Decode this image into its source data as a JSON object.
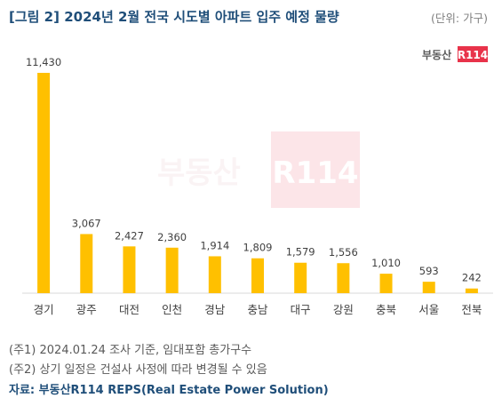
{
  "header": {
    "title": "[그림 2] 2024년 2월 전국 시도별 아파트 입주 예정 물량",
    "unit": "(단위: 가구)"
  },
  "branding": {
    "logo_text": "부동산R114",
    "watermark_text": "부동산R114"
  },
  "chart_data": {
    "type": "bar",
    "categories": [
      "경기",
      "광주",
      "대전",
      "인천",
      "경남",
      "충남",
      "대구",
      "강원",
      "충북",
      "서울",
      "전북"
    ],
    "values": [
      11430,
      3067,
      2427,
      2360,
      1914,
      1809,
      1579,
      1556,
      1010,
      593,
      242
    ],
    "value_labels": [
      "11,430",
      "3,067",
      "2,427",
      "2,360",
      "1,914",
      "1,809",
      "1,579",
      "1,556",
      "1,010",
      "593",
      "242"
    ],
    "bar_color": "#ffc000",
    "ylim": [
      0,
      11430
    ],
    "grid": false,
    "legend": "none"
  },
  "footer": {
    "note1": "(주1) 2024.01.24 조사 기준, 임대포함 총가구수",
    "note2": "(주2) 상기 일정은 건설사 사정에 따라 변경될 수 있음",
    "source": "자료: 부동산R114 REPS(Real Estate Power Solution)"
  },
  "colors": {
    "title": "#1f4e79",
    "axis": "#d9d9d9",
    "brand_red": "#e8334a"
  }
}
